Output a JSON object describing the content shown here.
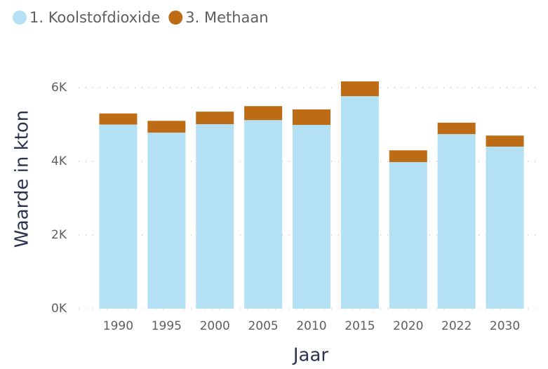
{
  "chart_data": {
    "type": "stacked_bar",
    "x_label": "Jaar",
    "y_label": "Waarde in kton",
    "categories": [
      "1990",
      "1995",
      "2000",
      "2005",
      "2010",
      "2015",
      "2020",
      "2022",
      "2030"
    ],
    "series": [
      {
        "name": "1. Koolstofdioxide",
        "color": "#b3e0f3",
        "values": [
          5000,
          4780,
          5010,
          5120,
          4990,
          5770,
          3980,
          4740,
          4400
        ]
      },
      {
        "name": "3. Methaan",
        "color": "#bd6b14",
        "values": [
          300,
          320,
          340,
          380,
          420,
          400,
          320,
          310,
          300
        ]
      }
    ],
    "ylim": [
      0,
      6400
    ],
    "yticks": [
      {
        "value": 0,
        "label": "0K"
      },
      {
        "value": 2000,
        "label": "2K"
      },
      {
        "value": 4000,
        "label": "4K"
      },
      {
        "value": 6000,
        "label": "6K"
      }
    ],
    "grid": true,
    "legend": "top-left"
  }
}
